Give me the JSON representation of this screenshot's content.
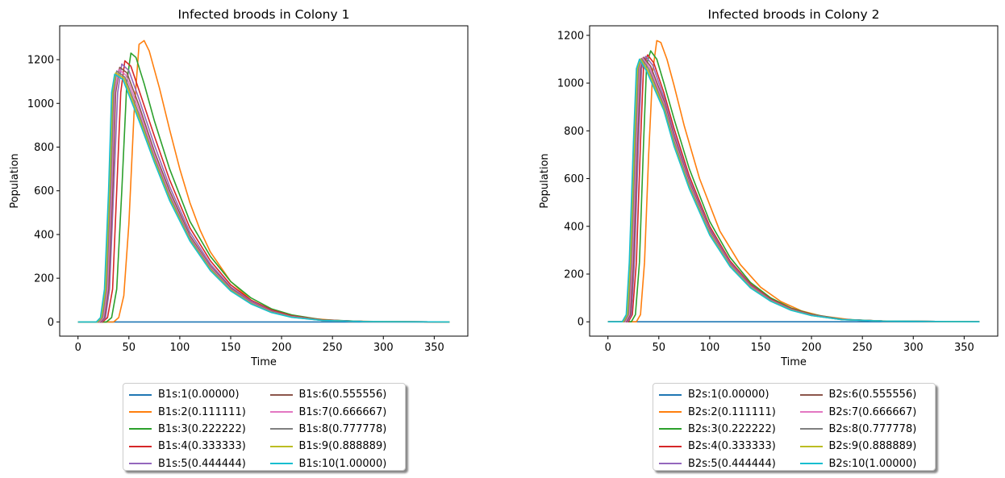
{
  "chart_data": [
    {
      "type": "line",
      "title": "Infected broods in Colony 1",
      "xlabel": "Time",
      "ylabel": "Population",
      "xlim": [
        -18,
        383
      ],
      "ylim": [
        -65,
        1355
      ],
      "xticks": [
        0,
        50,
        100,
        150,
        200,
        250,
        300,
        350
      ],
      "yticks": [
        0,
        200,
        400,
        600,
        800,
        1000,
        1200
      ],
      "legend_position": "lower center, below axes, 2 columns, shadow",
      "series": [
        {
          "name": "B1s:1(0.00000)",
          "color": "#1f77b4",
          "x": [
            0,
            365
          ],
          "y": [
            0,
            0
          ]
        },
        {
          "name": "B1s:2(0.111111)",
          "color": "#ff7f0e",
          "x": [
            0,
            35,
            40,
            45,
            50,
            55,
            60,
            65,
            70,
            80,
            90,
            100,
            110,
            120,
            130,
            150,
            170,
            190,
            210,
            230,
            260,
            300,
            365
          ],
          "y": [
            0,
            0,
            20,
            120,
            450,
            950,
            1270,
            1287,
            1240,
            1070,
            880,
            700,
            545,
            420,
            320,
            185,
            100,
            55,
            30,
            15,
            5,
            1,
            0
          ]
        },
        {
          "name": "B1s:3(0.222222)",
          "color": "#2ca02c",
          "x": [
            0,
            28,
            33,
            38,
            43,
            48,
            52,
            57,
            65,
            75,
            90,
            110,
            130,
            150,
            170,
            190,
            210,
            240,
            280,
            365
          ],
          "y": [
            0,
            0,
            20,
            150,
            600,
            1100,
            1230,
            1210,
            1090,
            920,
            700,
            460,
            300,
            185,
            110,
            60,
            32,
            10,
            2,
            0
          ]
        },
        {
          "name": "B1s:4(0.333333)",
          "color": "#d62728",
          "x": [
            0,
            24,
            29,
            34,
            38,
            42,
            46,
            52,
            60,
            75,
            90,
            110,
            130,
            150,
            170,
            190,
            210,
            240,
            280,
            365
          ],
          "y": [
            0,
            0,
            20,
            150,
            600,
            1050,
            1195,
            1170,
            1060,
            850,
            650,
            430,
            280,
            170,
            100,
            55,
            28,
            9,
            2,
            0
          ]
        },
        {
          "name": "B1s:5(0.444444)",
          "color": "#9467bd",
          "x": [
            0,
            23,
            27,
            31,
            35,
            39,
            43,
            50,
            60,
            75,
            90,
            110,
            130,
            150,
            170,
            190,
            210,
            240,
            280,
            365
          ],
          "y": [
            0,
            0,
            20,
            150,
            600,
            1050,
            1180,
            1150,
            1020,
            810,
            620,
            410,
            265,
            160,
            95,
            50,
            25,
            8,
            2,
            0
          ]
        },
        {
          "name": "B1s:6(0.555556)",
          "color": "#8c564b",
          "x": [
            0,
            22,
            26,
            30,
            34,
            37,
            41,
            48,
            60,
            75,
            90,
            110,
            130,
            150,
            170,
            190,
            210,
            240,
            280,
            365
          ],
          "y": [
            0,
            0,
            20,
            150,
            600,
            1050,
            1165,
            1140,
            990,
            780,
            600,
            395,
            255,
            155,
            90,
            48,
            24,
            8,
            2,
            0
          ]
        },
        {
          "name": "B1s:7(0.666667)",
          "color": "#e377c2",
          "x": [
            0,
            21,
            25,
            29,
            33,
            36,
            40,
            47,
            60,
            75,
            90,
            110,
            130,
            150,
            170,
            190,
            210,
            240,
            280,
            365
          ],
          "y": [
            0,
            0,
            20,
            150,
            600,
            1050,
            1155,
            1130,
            970,
            765,
            585,
            385,
            250,
            150,
            88,
            46,
            23,
            7,
            2,
            0
          ]
        },
        {
          "name": "B1s:8(0.777778)",
          "color": "#7f7f7f",
          "x": [
            0,
            20,
            24,
            28,
            32,
            35,
            38,
            46,
            60,
            75,
            90,
            110,
            130,
            150,
            170,
            190,
            210,
            240,
            280,
            365
          ],
          "y": [
            0,
            0,
            20,
            150,
            600,
            1050,
            1148,
            1120,
            950,
            750,
            575,
            380,
            245,
            148,
            86,
            45,
            22,
            7,
            2,
            0
          ]
        },
        {
          "name": "B1s:9(0.888889)",
          "color": "#bcbd22",
          "x": [
            0,
            19,
            23,
            27,
            31,
            34,
            37,
            45,
            60,
            75,
            90,
            110,
            130,
            150,
            170,
            190,
            210,
            240,
            280,
            365
          ],
          "y": [
            0,
            0,
            20,
            150,
            600,
            1050,
            1140,
            1115,
            935,
            740,
            565,
            375,
            240,
            145,
            84,
            44,
            22,
            7,
            2,
            0
          ]
        },
        {
          "name": "B1s:10(1.00000)",
          "color": "#17becf",
          "x": [
            0,
            18,
            22,
            26,
            30,
            33,
            36,
            44,
            60,
            75,
            90,
            110,
            130,
            150,
            170,
            190,
            210,
            240,
            280,
            365
          ],
          "y": [
            0,
            0,
            20,
            150,
            600,
            1050,
            1133,
            1110,
            920,
            730,
            555,
            370,
            235,
            142,
            82,
            43,
            21,
            7,
            2,
            0
          ]
        }
      ]
    },
    {
      "type": "line",
      "title": "Infected broods in Colony 2",
      "xlabel": "Time",
      "ylabel": "Population",
      "xlim": [
        -18,
        383
      ],
      "ylim": [
        -60,
        1240
      ],
      "xticks": [
        0,
        50,
        100,
        150,
        200,
        250,
        300,
        350
      ],
      "yticks": [
        0,
        200,
        400,
        600,
        800,
        1000,
        1200
      ],
      "legend_position": "lower center, below axes, 2 columns, shadow",
      "series": [
        {
          "name": "B2s:1(0.00000)",
          "color": "#1f77b4",
          "x": [
            0,
            365
          ],
          "y": [
            0,
            0
          ]
        },
        {
          "name": "B2s:2(0.111111)",
          "color": "#ff7f0e",
          "x": [
            0,
            28,
            32,
            36,
            40,
            44,
            48,
            52,
            58,
            65,
            75,
            90,
            110,
            130,
            150,
            170,
            190,
            210,
            240,
            280,
            365
          ],
          "y": [
            0,
            0,
            30,
            250,
            700,
            1050,
            1178,
            1170,
            1100,
            990,
            820,
            600,
            380,
            240,
            145,
            85,
            46,
            24,
            8,
            2,
            0
          ]
        },
        {
          "name": "B2s:3(0.222222)",
          "color": "#2ca02c",
          "x": [
            0,
            23,
            27,
            31,
            35,
            38,
            42,
            48,
            55,
            65,
            80,
            100,
            120,
            140,
            160,
            180,
            200,
            230,
            270,
            365
          ],
          "y": [
            0,
            0,
            30,
            250,
            750,
            1080,
            1135,
            1100,
            1000,
            850,
            640,
            420,
            270,
            165,
            100,
            58,
            32,
            11,
            3,
            0
          ]
        },
        {
          "name": "B2s:4(0.333333)",
          "color": "#d62728",
          "x": [
            0,
            20,
            24,
            28,
            32,
            35,
            39,
            45,
            55,
            65,
            80,
            100,
            120,
            140,
            160,
            180,
            200,
            230,
            270,
            365
          ],
          "y": [
            0,
            0,
            30,
            250,
            750,
            1070,
            1118,
            1085,
            960,
            810,
            610,
            400,
            255,
            158,
            95,
            55,
            30,
            10,
            3,
            0
          ]
        },
        {
          "name": "B2s:5(0.444444)",
          "color": "#9467bd",
          "x": [
            0,
            19,
            23,
            26,
            30,
            33,
            37,
            44,
            55,
            65,
            80,
            100,
            120,
            140,
            160,
            180,
            200,
            230,
            270,
            365
          ],
          "y": [
            0,
            0,
            30,
            250,
            750,
            1060,
            1112,
            1075,
            940,
            790,
            595,
            390,
            248,
            153,
            92,
            53,
            29,
            10,
            3,
            0
          ]
        },
        {
          "name": "B2s:6(0.555556)",
          "color": "#8c564b",
          "x": [
            0,
            18,
            22,
            25,
            29,
            32,
            35,
            42,
            55,
            65,
            80,
            100,
            120,
            140,
            160,
            180,
            200,
            230,
            270,
            365
          ],
          "y": [
            0,
            0,
            30,
            250,
            750,
            1060,
            1108,
            1070,
            925,
            775,
            585,
            383,
            243,
            150,
            90,
            52,
            28,
            10,
            3,
            0
          ]
        },
        {
          "name": "B2s:7(0.666667)",
          "color": "#e377c2",
          "x": [
            0,
            17,
            21,
            24,
            28,
            31,
            34,
            41,
            55,
            65,
            80,
            100,
            120,
            140,
            160,
            180,
            200,
            230,
            270,
            365
          ],
          "y": [
            0,
            0,
            30,
            250,
            750,
            1060,
            1105,
            1065,
            915,
            765,
            578,
            378,
            240,
            148,
            89,
            51,
            27,
            9,
            3,
            0
          ]
        },
        {
          "name": "B2s:8(0.777778)",
          "color": "#7f7f7f",
          "x": [
            0,
            16,
            20,
            23,
            27,
            30,
            33,
            40,
            55,
            65,
            80,
            100,
            120,
            140,
            160,
            180,
            200,
            230,
            270,
            365
          ],
          "y": [
            0,
            0,
            30,
            250,
            750,
            1060,
            1103,
            1060,
            905,
            755,
            570,
            373,
            237,
            146,
            88,
            50,
            27,
            9,
            3,
            0
          ]
        },
        {
          "name": "B2s:9(0.888889)",
          "color": "#bcbd22",
          "x": [
            0,
            15,
            19,
            22,
            26,
            29,
            32,
            39,
            55,
            65,
            80,
            100,
            120,
            140,
            160,
            180,
            200,
            230,
            270,
            365
          ],
          "y": [
            0,
            0,
            30,
            250,
            750,
            1060,
            1101,
            1055,
            895,
            745,
            563,
            368,
            234,
            144,
            87,
            49,
            26,
            9,
            3,
            0
          ]
        },
        {
          "name": "B2s:10(1.00000)",
          "color": "#17becf",
          "x": [
            0,
            14,
            18,
            21,
            25,
            28,
            31,
            38,
            55,
            65,
            80,
            100,
            120,
            140,
            160,
            180,
            200,
            230,
            270,
            365
          ],
          "y": [
            0,
            0,
            30,
            250,
            750,
            1060,
            1100,
            1050,
            885,
            735,
            556,
            363,
            231,
            142,
            86,
            48,
            26,
            9,
            3,
            0
          ]
        }
      ]
    }
  ]
}
